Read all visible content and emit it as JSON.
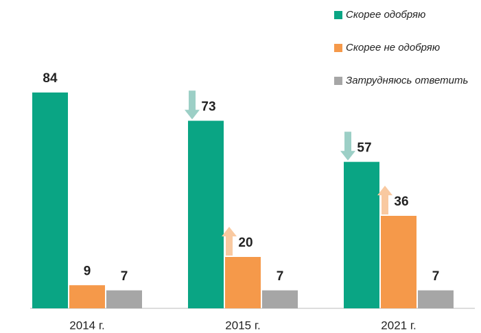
{
  "chart_data": {
    "type": "bar",
    "categories": [
      "2014 г.",
      "2015 г.",
      "2021 г."
    ],
    "series": [
      {
        "name": "Скорее одобряю",
        "color": "#0aa584",
        "values": [
          84,
          73,
          57
        ]
      },
      {
        "name": "Скорее не одобряю",
        "color": "#f5994a",
        "values": [
          9,
          20,
          36
        ]
      },
      {
        "name": "Затрудняюсь ответить",
        "color": "#a6a6a6",
        "values": [
          7,
          7,
          7
        ]
      }
    ],
    "legend": "upper right"
  }
}
